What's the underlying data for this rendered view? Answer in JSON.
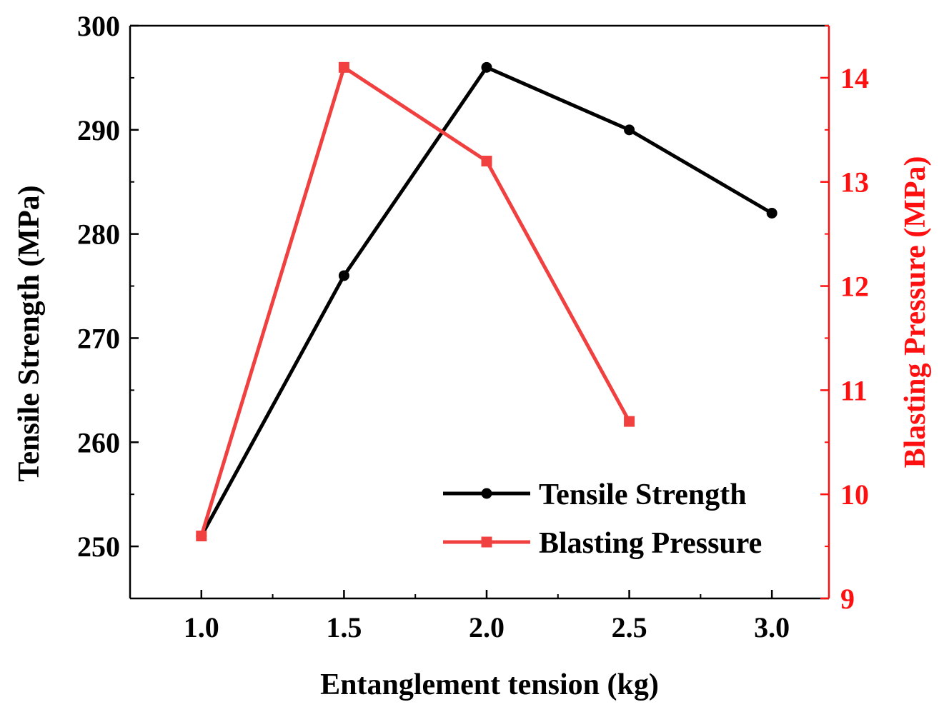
{
  "chart_data": {
    "type": "line",
    "xlabel": "Entanglement tension (kg)",
    "ylabel_left": "Tensile Strength (MPa)",
    "ylabel_right": "Blasting Pressure (MPa)",
    "xlim": [
      0.75,
      3.2
    ],
    "ylim_left": [
      245,
      300
    ],
    "ylim_right": [
      9,
      14.5
    ],
    "x_ticks": [
      "1.0",
      "1.5",
      "2.0",
      "2.5",
      "3.0"
    ],
    "x_tick_values": [
      1.0,
      1.5,
      2.0,
      2.5,
      3.0
    ],
    "y_left_ticks": [
      "250",
      "260",
      "270",
      "280",
      "290",
      "300"
    ],
    "y_left_tick_values": [
      250,
      260,
      270,
      280,
      290,
      300
    ],
    "y_right_ticks": [
      "9",
      "10",
      "11",
      "12",
      "13",
      "14"
    ],
    "y_right_tick_values": [
      9,
      10,
      11,
      12,
      13,
      14
    ],
    "grid": false,
    "legend_position": "bottom-right",
    "series": [
      {
        "name": "Tensile Strength",
        "axis": "left",
        "marker": "circle",
        "color": "#000000",
        "x": [
          1.0,
          1.5,
          2.0,
          2.5,
          3.0
        ],
        "values": [
          251,
          276,
          296,
          290,
          282
        ]
      },
      {
        "name": "Blasting Pressure",
        "axis": "right",
        "marker": "square",
        "color": "#f0403f",
        "x": [
          1.0,
          1.5,
          2.0,
          2.5
        ],
        "values": [
          9.6,
          14.1,
          13.2,
          10.7
        ]
      }
    ],
    "colors": {
      "axis_left": "#000000",
      "axis_right": "#ff1010"
    }
  }
}
